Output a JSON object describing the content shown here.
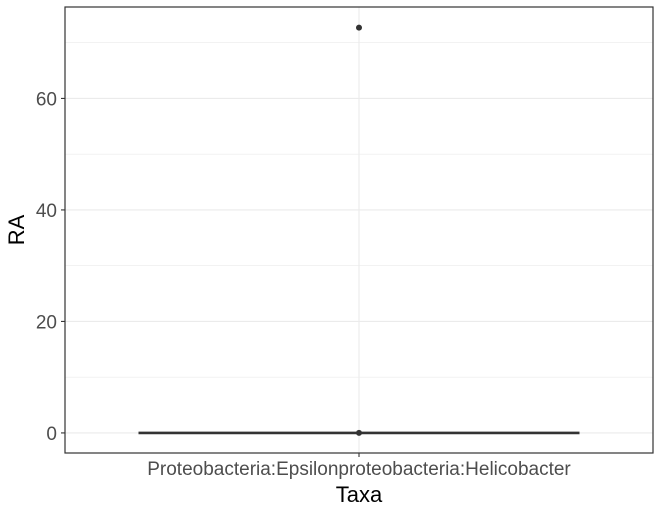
{
  "chart_data": {
    "type": "box",
    "categories": [
      "Proteobacteria:Epsilonproteobacteria:Helicobacter"
    ],
    "series": [
      {
        "min": 0,
        "q1": 0,
        "median": 0,
        "q3": 0,
        "max": 0,
        "outliers": [
          72.7,
          0
        ]
      }
    ],
    "xlabel": "Taxa",
    "ylabel": "RA",
    "yticks": [
      0,
      20,
      40,
      60
    ],
    "ylim": [
      -3.6,
      76.4
    ],
    "grid": true,
    "theme": "bw",
    "colors": {
      "box": "#333333",
      "outlier": "#333333",
      "grid": "#ebebeb",
      "border": "#333333"
    }
  }
}
